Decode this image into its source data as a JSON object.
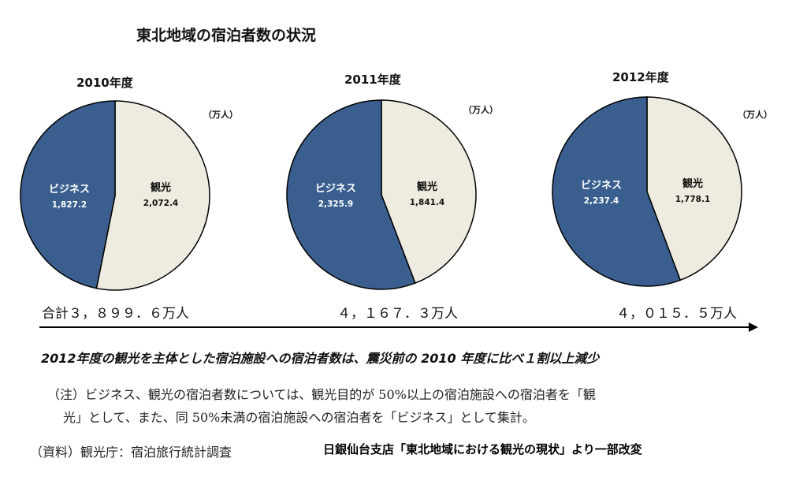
{
  "title": "東北地域の宿泊者数の状況",
  "chart_data": [
    {
      "type": "pie",
      "title": "2010年度",
      "unit": "（万人）",
      "categories": [
        "ビジネス",
        "観光"
      ],
      "values": [
        1827.2,
        2072.4
      ],
      "labels": [
        "1,827.2",
        "2,072.4"
      ],
      "colors": [
        "#3a5f8f",
        "#eeece1"
      ],
      "total": "合計３，８９９．６万人"
    },
    {
      "type": "pie",
      "title": "2011年度",
      "unit": "（万人）",
      "categories": [
        "ビジネス",
        "観光"
      ],
      "values": [
        2325.9,
        1841.4
      ],
      "labels": [
        "2,325.9",
        "1,841.4"
      ],
      "colors": [
        "#3a5f8f",
        "#eeece1"
      ],
      "total": "４，１６７．３万人"
    },
    {
      "type": "pie",
      "title": "2012年度",
      "unit": "（万人）",
      "categories": [
        "ビジネス",
        "観光"
      ],
      "values": [
        2237.4,
        1778.1
      ],
      "labels": [
        "2,237.4",
        "1,778.1"
      ],
      "colors": [
        "#3a5f8f",
        "#eeece1"
      ],
      "total": "４，０１５．５万人"
    }
  ],
  "conclusion": "2012年度の観光を主体とした宿泊施設への宿泊者数は、震災前の 2010 年度に比べ１割以上減少",
  "note_line1": "（注）ビジネス、観光の宿泊者数については、観光目的が 50%以上の宿泊施設への宿泊者を「観",
  "note_line2": "光」として、また、同 50%未満の宿泊施設への宿泊者を「ビジネス」として集計。",
  "source": "（資料）観光庁：宿泊旅行統計調査",
  "credit": "日銀仙台支店「東北地域における観光の現状」より一部改変"
}
